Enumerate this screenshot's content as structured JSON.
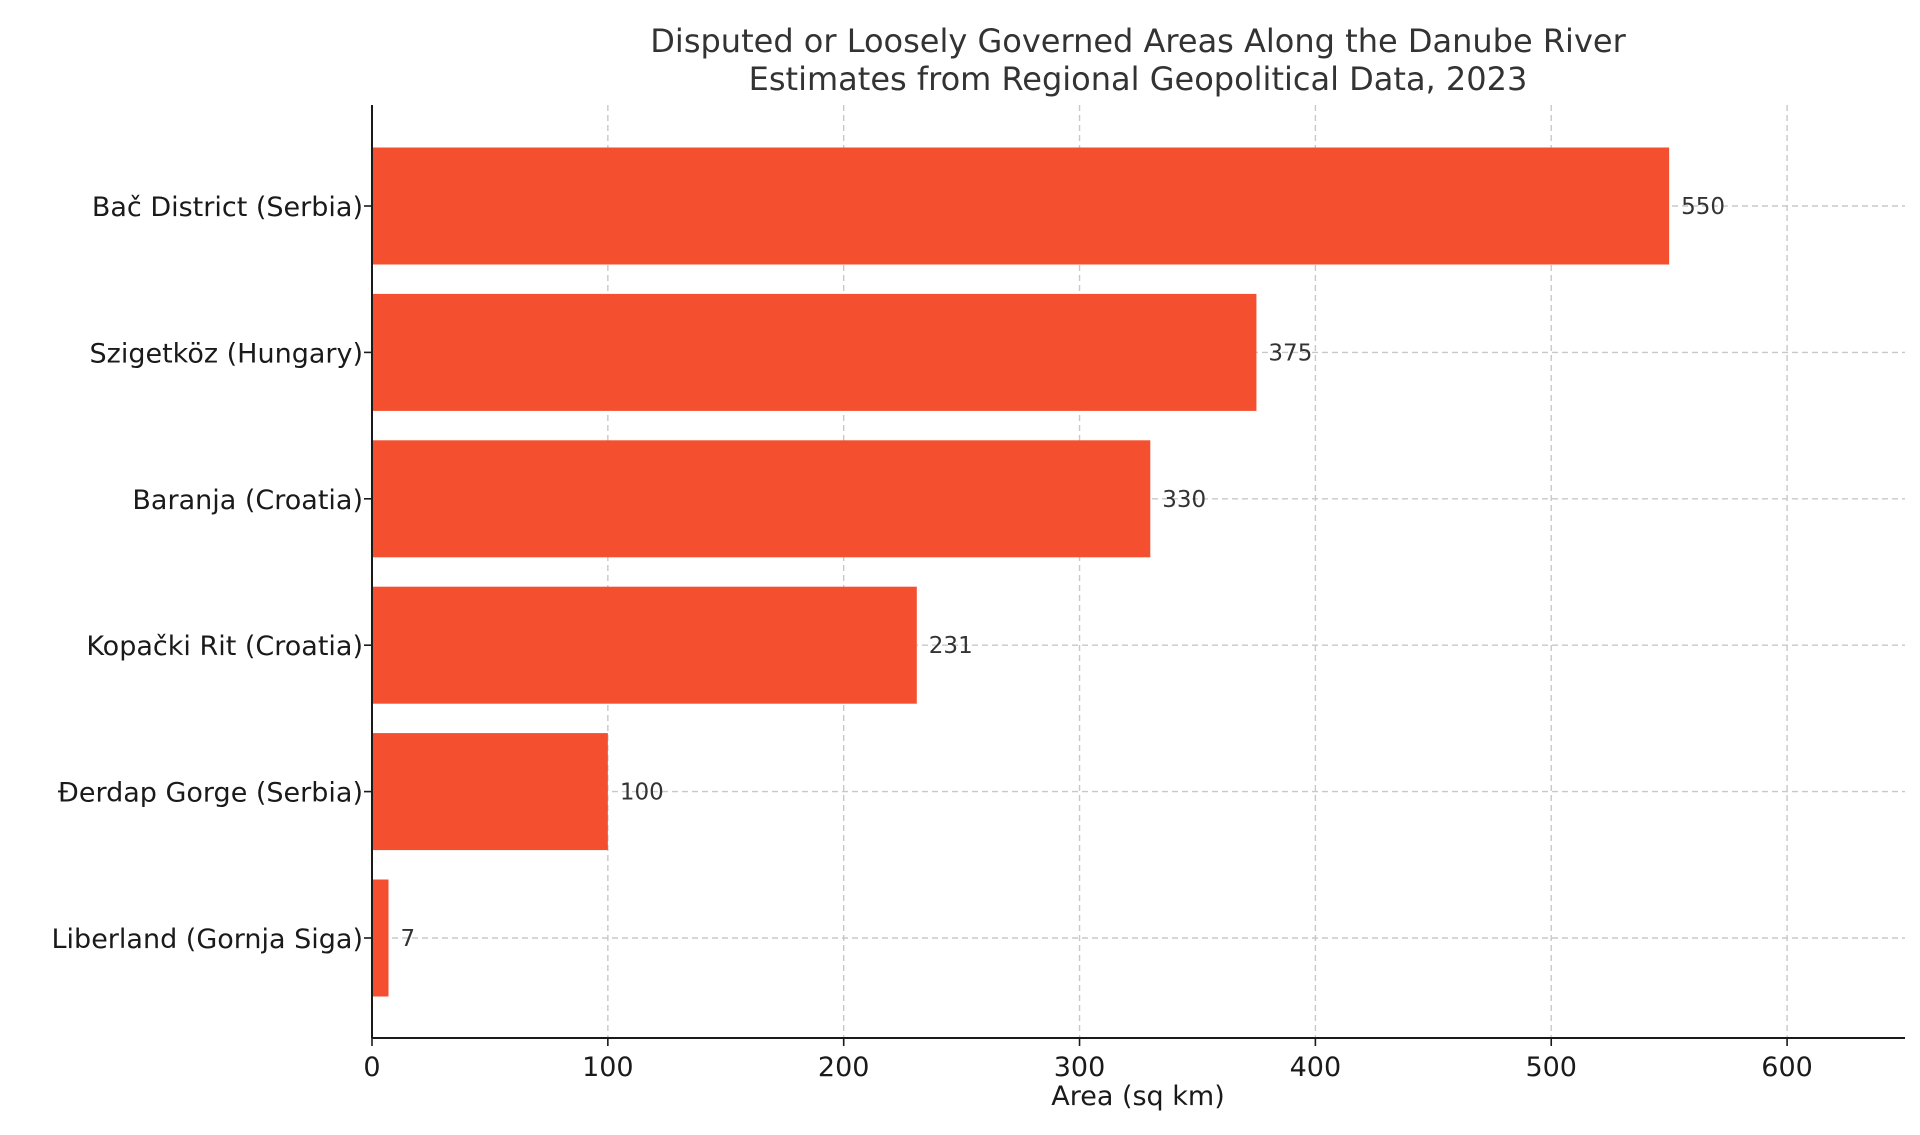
{
  "chart_data": {
    "type": "bar",
    "orientation": "horizontal",
    "title": "Disputed or Loosely Governed Areas Along the Danube River",
    "subtitle": "Estimates from Regional Geopolitical Data, 2023",
    "categories": [
      "Bač District (Serbia)",
      "Szigetköz (Hungary)",
      "Baranja (Croatia)",
      "Kopački Rit (Croatia)",
      "Đerdap Gorge (Serbia)",
      "Liberland (Gornja Siga)"
    ],
    "values": [
      550,
      375,
      330,
      231,
      100,
      7
    ],
    "data_labels": [
      "550",
      "375",
      "330",
      "231",
      "100",
      "7"
    ],
    "xlabel": "Area (sq km)",
    "ylabel": "",
    "xlim": [
      0,
      650
    ],
    "xticks": [
      0,
      100,
      200,
      300,
      400,
      500,
      600
    ],
    "xtick_labels": [
      "0",
      "100",
      "200",
      "300",
      "400",
      "500",
      "600"
    ],
    "grid": true,
    "bar_color": "#f44f2f"
  }
}
